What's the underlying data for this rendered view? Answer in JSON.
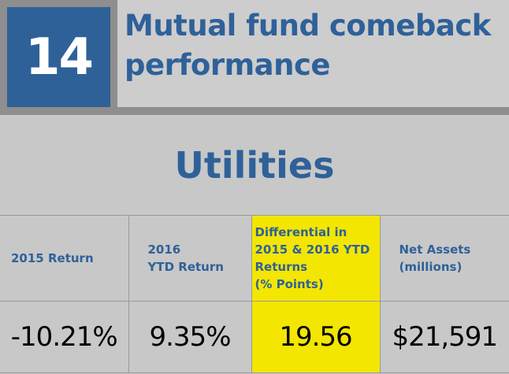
{
  "header": {
    "rank": "14",
    "title": "Mutual fund comeback performance"
  },
  "section": {
    "title": "Utilities"
  },
  "table": {
    "columns": [
      "2015 Return",
      "2016\nYTD Return",
      "Differential in\n2015 & 2016 YTD\nReturns\n(% Points)",
      "Net Assets\n(millions)"
    ],
    "values": [
      "-10.21%",
      "9.35%",
      "19.56",
      "$21,591"
    ]
  },
  "colors": {
    "brand_blue": "#2f6199",
    "highlight_yellow": "#f3e600",
    "frame_gray": "#8e8e8e",
    "background_gray": "#c8c8c8"
  }
}
